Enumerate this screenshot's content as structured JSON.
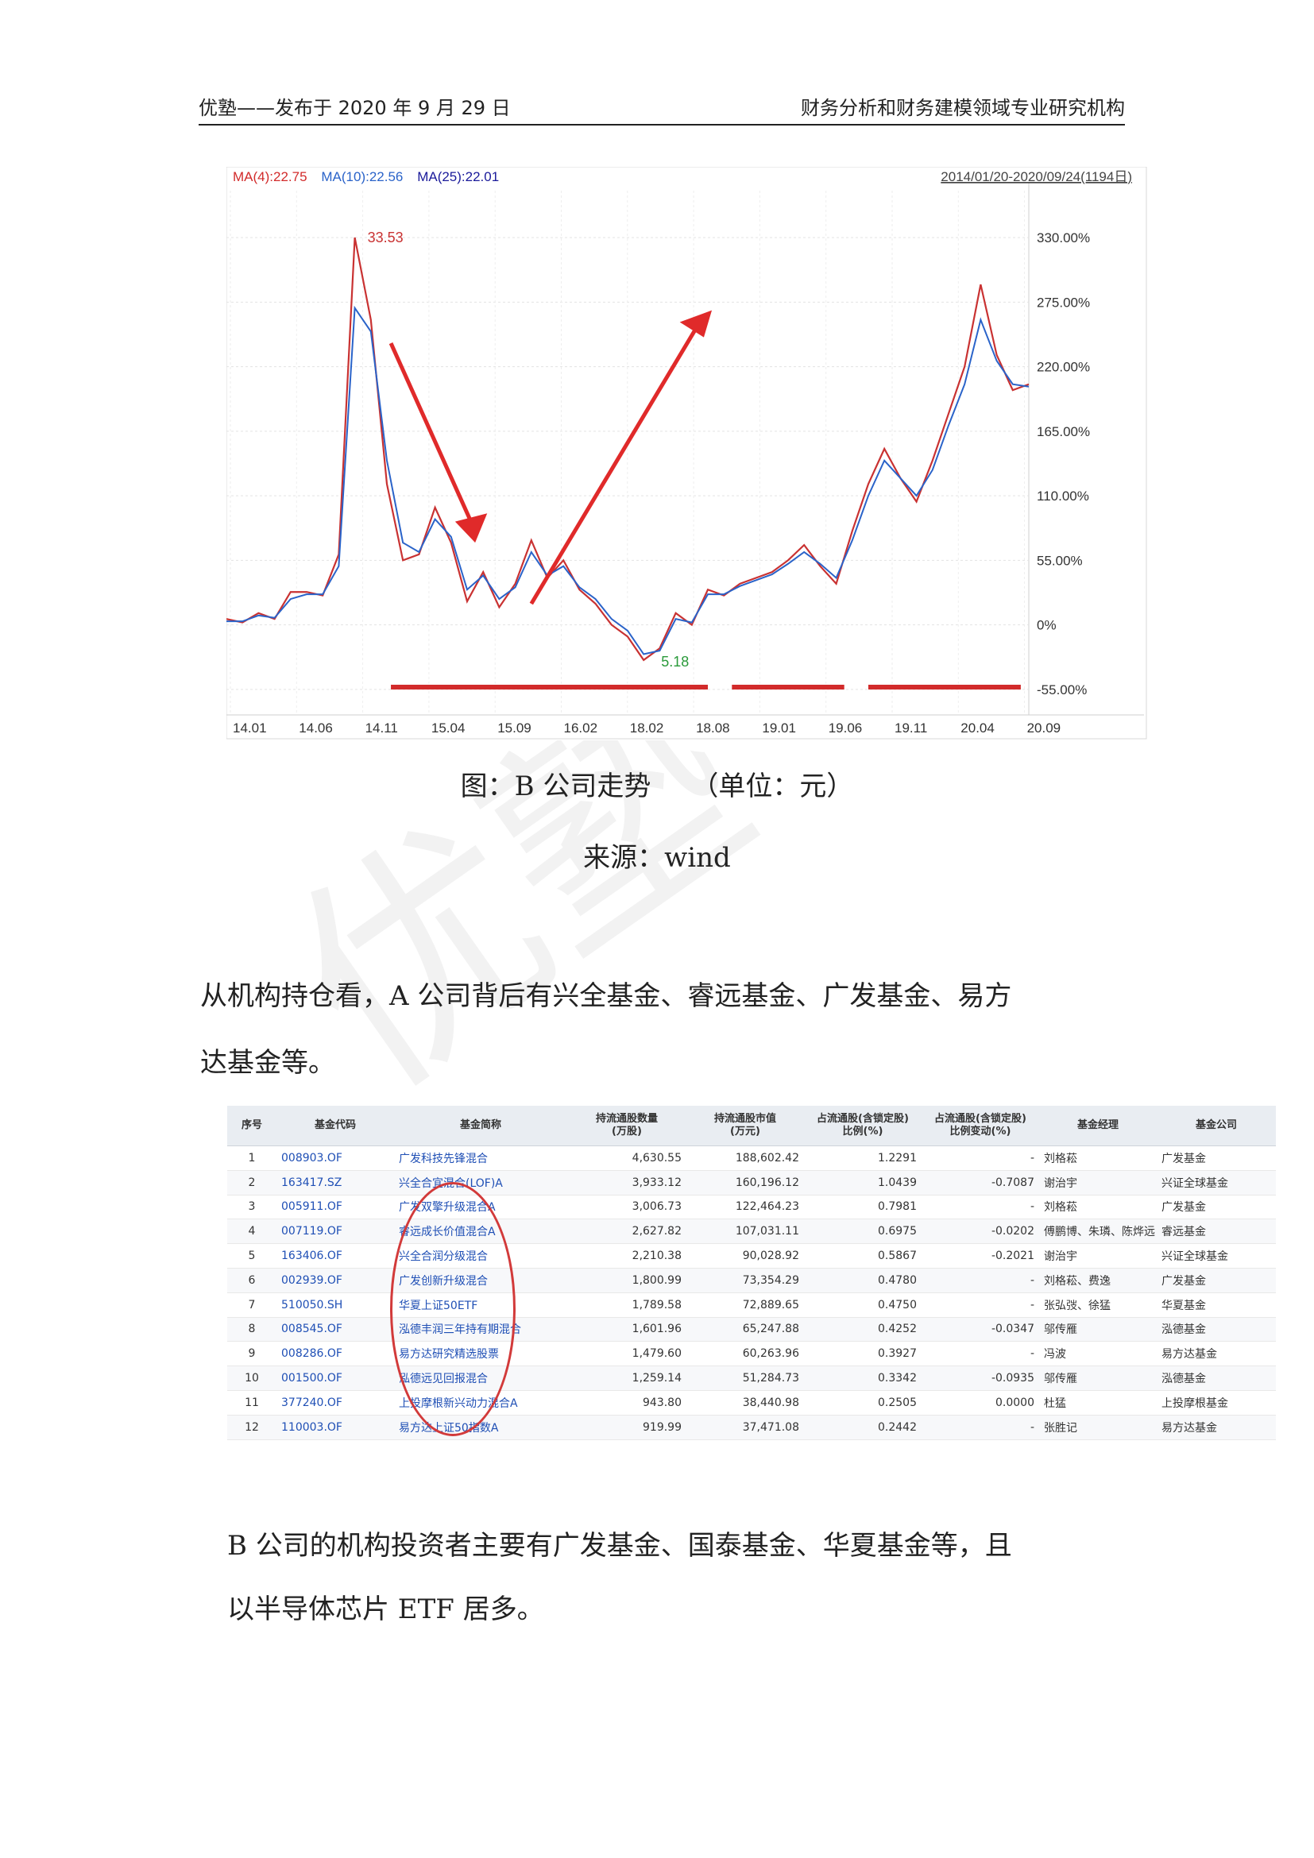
{
  "header": {
    "left": "优塾——发布于 2020 年 9 月 29 日",
    "right": "财务分析和财务建模领域专业研究机构"
  },
  "chart_data": {
    "type": "line",
    "ma_labels": [
      "MA(4):22.75",
      "MA(10):22.56",
      "MA(25):22.01"
    ],
    "ma_colors": [
      "#d22b2b",
      "#2a63c9",
      "#1a1a9a"
    ],
    "range_label": "2014/01/20-2020/09/24(1194日)",
    "y_ticks": [
      "330.00%",
      "275.00%",
      "220.00%",
      "165.00%",
      "110.00%",
      "55.00%",
      "0%",
      "-55.00%"
    ],
    "y_tick_values": [
      330,
      275,
      220,
      165,
      110,
      55,
      0,
      -55
    ],
    "ylim": [
      -70,
      370
    ],
    "x_ticks": [
      "14.01",
      "14.06",
      "14.11",
      "15.04",
      "15.09",
      "16.02",
      "18.02",
      "18.08",
      "19.01",
      "19.06",
      "19.11",
      "20.04",
      "20.09"
    ],
    "high_label": "33.53",
    "low_label": "5.18",
    "x": [
      0,
      2,
      4,
      6,
      8,
      10,
      12,
      14,
      16,
      18,
      20,
      22,
      24,
      26,
      28,
      30,
      32,
      34,
      36,
      38,
      40,
      42,
      44,
      46,
      48,
      50,
      52,
      54,
      56,
      58,
      60,
      62,
      64,
      66,
      68,
      70,
      72,
      74,
      76,
      78,
      80,
      82,
      84,
      86,
      88,
      90,
      92,
      94,
      96,
      98,
      100
    ],
    "values": [
      5,
      2,
      10,
      5,
      28,
      28,
      25,
      60,
      330,
      260,
      120,
      55,
      60,
      100,
      70,
      20,
      45,
      15,
      35,
      72,
      40,
      55,
      30,
      18,
      0,
      -10,
      -30,
      -20,
      10,
      0,
      30,
      25,
      35,
      40,
      45,
      55,
      68,
      50,
      35,
      80,
      120,
      150,
      125,
      105,
      140,
      180,
      220,
      290,
      230,
      200,
      205
    ],
    "ma_values": [
      3,
      3,
      8,
      6,
      22,
      26,
      26,
      50,
      270,
      250,
      140,
      70,
      62,
      90,
      75,
      30,
      42,
      22,
      32,
      62,
      42,
      50,
      32,
      22,
      5,
      -5,
      -25,
      -22,
      5,
      2,
      26,
      26,
      33,
      38,
      43,
      52,
      62,
      52,
      40,
      72,
      110,
      140,
      125,
      110,
      132,
      170,
      205,
      260,
      225,
      205,
      203
    ],
    "bottom_markers": [
      {
        "x0": 20.5,
        "x1": 60
      },
      {
        "x0": 63,
        "x1": 77
      },
      {
        "x0": 80,
        "x1": 99
      }
    ]
  },
  "caption": {
    "title": "图：B 公司走势　　（单位：元）",
    "source": "来源：wind"
  },
  "para1": {
    "line1": "从机构持仓看，A 公司背后有兴全基金、睿远基金、广发基金、易方",
    "line2": "达基金等。"
  },
  "table": {
    "headers": [
      "序号",
      "基金代码",
      "基金简称",
      "持流通股数量\n(万股)",
      "持流通股市值\n(万元)",
      "占流通股(含锁定股)\n比例(%)",
      "占流通股(含锁定股)\n比例变动(%)",
      "基金经理",
      "基金公司"
    ],
    "rows": [
      [
        "1",
        "008903.OF",
        "广发科技先锋混合",
        "4,630.55",
        "188,602.42",
        "1.2291",
        "-",
        "刘格菘",
        "广发基金"
      ],
      [
        "2",
        "163417.SZ",
        "兴全合宜混合(LOF)A",
        "3,933.12",
        "160,196.12",
        "1.0439",
        "-0.7087",
        "谢治宇",
        "兴证全球基金"
      ],
      [
        "3",
        "005911.OF",
        "广发双擎升级混合A",
        "3,006.73",
        "122,464.23",
        "0.7981",
        "-",
        "刘格菘",
        "广发基金"
      ],
      [
        "4",
        "007119.OF",
        "睿远成长价值混合A",
        "2,627.82",
        "107,031.11",
        "0.6975",
        "-0.0202",
        "傅鹏博、朱璘、陈烨远",
        "睿远基金"
      ],
      [
        "5",
        "163406.OF",
        "兴全合润分级混合",
        "2,210.38",
        "90,028.92",
        "0.5867",
        "-0.2021",
        "谢治宇",
        "兴证全球基金"
      ],
      [
        "6",
        "002939.OF",
        "广发创新升级混合",
        "1,800.99",
        "73,354.29",
        "0.4780",
        "-",
        "刘格菘、费逸",
        "广发基金"
      ],
      [
        "7",
        "510050.SH",
        "华夏上证50ETF",
        "1,789.58",
        "72,889.65",
        "0.4750",
        "-",
        "张弘弢、徐猛",
        "华夏基金"
      ],
      [
        "8",
        "008545.OF",
        "泓德丰润三年持有期混合",
        "1,601.96",
        "65,247.88",
        "0.4252",
        "-0.0347",
        "邬传雁",
        "泓德基金"
      ],
      [
        "9",
        "008286.OF",
        "易方达研究精选股票",
        "1,479.60",
        "60,263.96",
        "0.3927",
        "-",
        "冯波",
        "易方达基金"
      ],
      [
        "10",
        "001500.OF",
        "泓德远见回报混合",
        "1,259.14",
        "51,284.73",
        "0.3342",
        "-0.0935",
        "邬传雁",
        "泓德基金"
      ],
      [
        "11",
        "377240.OF",
        "上投摩根新兴动力混合A",
        "943.80",
        "38,440.98",
        "0.2505",
        "0.0000",
        "杜猛",
        "上投摩根基金"
      ],
      [
        "12",
        "110003.OF",
        "易方达上证50指数A",
        "919.99",
        "37,471.08",
        "0.2442",
        "-",
        "张胜记",
        "易方达基金"
      ]
    ]
  },
  "para2": {
    "line1": "B 公司的机构投资者主要有广发基金、国泰基金、华夏基金等，且",
    "line2": "以半导体芯片 ETF 居多。"
  }
}
